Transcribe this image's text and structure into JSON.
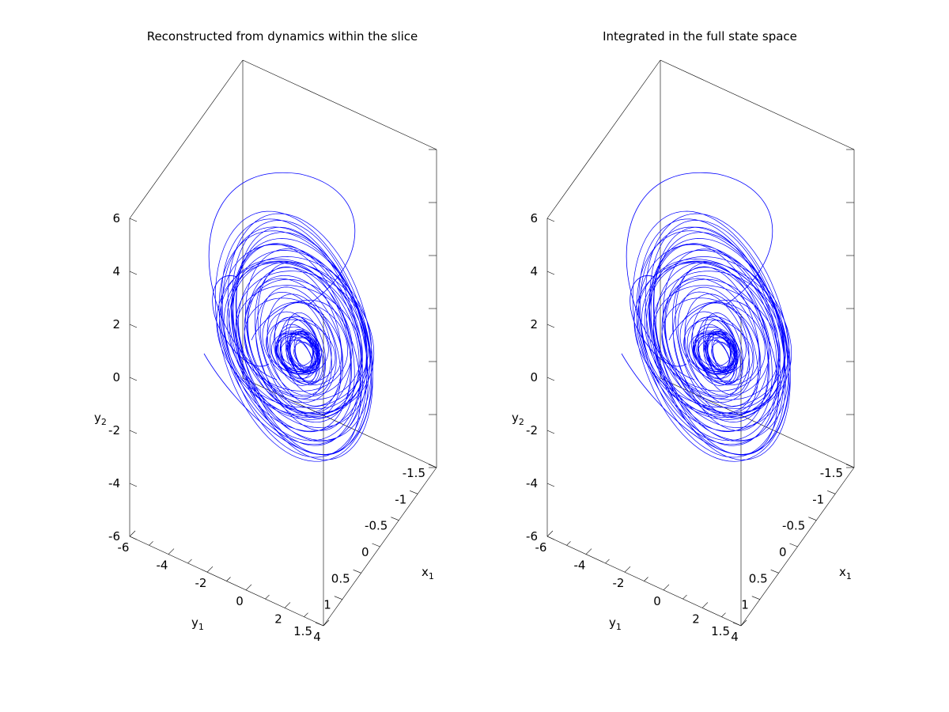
{
  "chart_data": [
    {
      "type": "line",
      "title": "Reconstructed from dynamics within the slice",
      "dimensions": 3,
      "xlabel": "x1",
      "ylabel": "y1",
      "zlabel": "y2",
      "x_axis": {
        "name": "x1",
        "range": [
          -1.5,
          1.5
        ],
        "ticks": [
          "-1.5",
          "-1",
          "-0.5",
          "0",
          "0.5",
          "1",
          "1.5"
        ]
      },
      "y_axis": {
        "name": "y1",
        "range": [
          -6,
          4
        ],
        "ticks": [
          "-6",
          "-4",
          "-2",
          "0",
          "2",
          "4"
        ]
      },
      "z_axis": {
        "name": "y2",
        "range": [
          -6,
          6
        ],
        "ticks": [
          "-6",
          "-4",
          "-2",
          "0",
          "2",
          "4",
          "6"
        ]
      },
      "series": [
        {
          "color": "#0000ff"
        }
      ]
    },
    {
      "type": "line",
      "title": "Integrated in the full state space",
      "dimensions": 3,
      "xlabel": "x1",
      "ylabel": "y1",
      "zlabel": "y2",
      "x_axis": {
        "name": "x1",
        "range": [
          -1.5,
          1.5
        ],
        "ticks": [
          "-1.5",
          "-1",
          "-0.5",
          "0",
          "0.5",
          "1",
          "1.5"
        ]
      },
      "y_axis": {
        "name": "y1",
        "range": [
          -6,
          4
        ],
        "ticks": [
          "-6",
          "-4",
          "-2",
          "0",
          "2",
          "4"
        ]
      },
      "z_axis": {
        "name": "y2",
        "range": [
          -6,
          6
        ],
        "ticks": [
          "-6",
          "-4",
          "-2",
          "0",
          "2",
          "4",
          "6"
        ]
      },
      "series": [
        {
          "color": "#0000ff"
        }
      ]
    }
  ]
}
